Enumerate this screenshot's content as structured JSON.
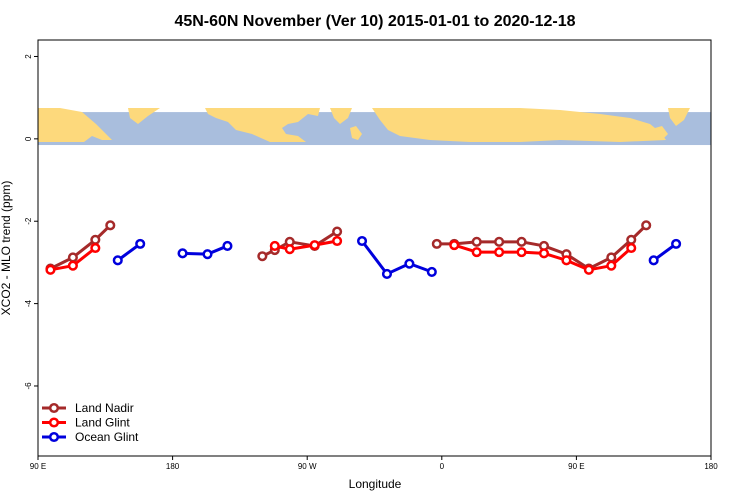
{
  "chart_data": {
    "type": "line",
    "title": "45N-60N November (Ver 10)   2015-01-01 to 2020-12-18",
    "xlabel": "Longitude",
    "ylabel": "XCO2 - MLO trend (ppm)",
    "xlim": [
      -90,
      180
    ],
    "ylim": [
      -7.7,
      2.4
    ],
    "x_ticks": [
      {
        "value": -90,
        "label": "90 E"
      },
      {
        "value": -36,
        "label": "180"
      },
      {
        "value": 18,
        "label": "90 W"
      },
      {
        "value": 72,
        "label": "0"
      },
      {
        "value": 126,
        "label": "90 E"
      },
      {
        "value": 180,
        "label": "180"
      }
    ],
    "y_ticks": [
      {
        "value": 2,
        "label": "2"
      },
      {
        "value": 0,
        "label": "0"
      },
      {
        "value": -2,
        "label": "-2"
      },
      {
        "value": -4,
        "label": "-4"
      },
      {
        "value": -6,
        "label": "-6"
      }
    ],
    "map_band": {
      "y_top": 0.65,
      "y_bottom": -0.15,
      "ocean_color": "#a9bedd",
      "land_color": "#fdd97c"
    },
    "legend_position": "bottom-left",
    "series": [
      {
        "name": "Land Nadir",
        "color": "#a52a2a",
        "segments": [
          [
            [
              -85,
              -3.15
            ],
            [
              -76,
              -2.88
            ],
            [
              -67,
              -2.45
            ],
            [
              -61,
              -2.1
            ]
          ],
          [
            [
              0,
              -2.85
            ],
            [
              5,
              -2.7
            ],
            [
              11,
              -2.5
            ],
            [
              21,
              -2.6
            ],
            [
              30,
              -2.25
            ]
          ],
          [
            [
              70,
              -2.55
            ],
            [
              77,
              -2.55
            ],
            [
              86,
              -2.5
            ],
            [
              95,
              -2.5
            ],
            [
              104,
              -2.5
            ],
            [
              113,
              -2.6
            ],
            [
              122,
              -2.8
            ],
            [
              131,
              -3.15
            ],
            [
              140,
              -2.88
            ],
            [
              148,
              -2.45
            ],
            [
              154,
              -2.1
            ]
          ]
        ]
      },
      {
        "name": "Land Glint",
        "color": "#ff0000",
        "segments": [
          [
            [
              -85,
              -3.18
            ],
            [
              -76,
              -3.08
            ],
            [
              -67,
              -2.65
            ]
          ],
          [
            [
              5,
              -2.6
            ],
            [
              11,
              -2.68
            ],
            [
              21,
              -2.58
            ],
            [
              30,
              -2.48
            ]
          ],
          [
            [
              77,
              -2.58
            ],
            [
              86,
              -2.75
            ],
            [
              95,
              -2.75
            ],
            [
              104,
              -2.75
            ],
            [
              113,
              -2.78
            ],
            [
              122,
              -2.95
            ],
            [
              131,
              -3.18
            ],
            [
              140,
              -3.08
            ],
            [
              148,
              -2.65
            ]
          ]
        ]
      },
      {
        "name": "Ocean Glint",
        "color": "#0000dd",
        "segments": [
          [
            [
              -58,
              -2.95
            ],
            [
              -49,
              -2.55
            ]
          ],
          [
            [
              -32,
              -2.78
            ],
            [
              -22,
              -2.8
            ],
            [
              -14,
              -2.6
            ]
          ],
          [
            [
              40,
              -2.48
            ],
            [
              50,
              -3.28
            ],
            [
              59,
              -3.03
            ],
            [
              68,
              -3.23
            ]
          ],
          [
            [
              157,
              -2.95
            ],
            [
              166,
              -2.55
            ]
          ]
        ]
      }
    ]
  }
}
